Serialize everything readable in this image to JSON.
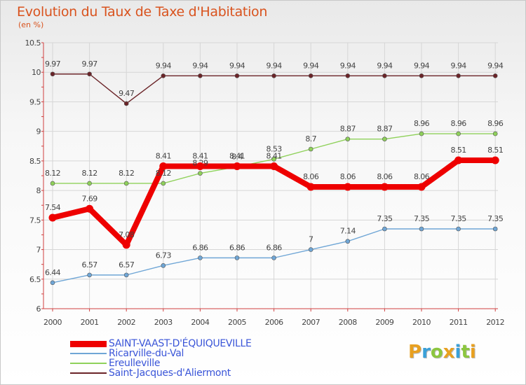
{
  "colors": {
    "title": "#d9531e",
    "background_top": "#e9e9e9",
    "grid": "#d4d4d4",
    "axis": "#d04040"
  },
  "chart_data": {
    "type": "line",
    "title": "Evolution du Taux de Taxe d'Habitation",
    "subtitle": "(en %)",
    "xlabel": "",
    "ylabel": "",
    "ylim": [
      6,
      10.5
    ],
    "y_ticks": [
      "6",
      "6.5",
      "7",
      "7.5",
      "8",
      "8.5",
      "9",
      "9.5",
      "10",
      "10.5"
    ],
    "x": [
      "2000",
      "2001",
      "2002",
      "2003",
      "2004",
      "2005",
      "2006",
      "2007",
      "2008",
      "2009",
      "2010",
      "2011",
      "2012"
    ],
    "legend_position": "bottom-left",
    "grid": true,
    "series": [
      {
        "name": "Saint-Jacques-d'Aliermont",
        "color": "#6b2428",
        "values": [
          9.97,
          9.97,
          9.47,
          9.94,
          9.94,
          9.94,
          9.94,
          9.94,
          9.94,
          9.94,
          9.94,
          9.94,
          9.94
        ],
        "labels": [
          "9.97",
          "9.97",
          "9.47",
          "9.94",
          "9.94",
          "9.94",
          "9.94",
          "9.94",
          "9.94",
          "9.94",
          "9.94",
          "9.94",
          "9.94"
        ]
      },
      {
        "name": "Ereulleville",
        "color": "#8fd15a",
        "values": [
          8.12,
          8.12,
          8.12,
          8.12,
          8.29,
          8.4,
          8.53,
          8.7,
          8.87,
          8.87,
          8.96,
          8.96,
          8.96
        ],
        "labels": [
          "8.12",
          "8.12",
          "8.12",
          "8.12",
          "8.29",
          "8.4",
          "8.53",
          "8.7",
          "8.87",
          "8.87",
          "8.96",
          "8.96",
          "8.96"
        ]
      },
      {
        "name": "Ricarville-du-Val",
        "color": "#6fa6d6",
        "values": [
          6.44,
          6.57,
          6.57,
          6.73,
          6.86,
          6.86,
          6.86,
          7,
          7.14,
          7.35,
          7.35,
          7.35,
          7.35
        ],
        "labels": [
          "6.44",
          "6.57",
          "6.57",
          "6.73",
          "6.86",
          "6.86",
          "6.86",
          "7",
          "7.14",
          "7.35",
          "7.35",
          "7.35",
          "7.35"
        ]
      },
      {
        "name": "SAINT-VAAST-D'ÉQUIQUEVILLE",
        "color": "#ee0000",
        "values": [
          7.54,
          7.69,
          7.08,
          8.41,
          8.41,
          8.41,
          8.41,
          8.06,
          8.06,
          8.06,
          8.06,
          8.51,
          8.51
        ],
        "labels": [
          "7.54",
          "7.69",
          "7.08",
          "8.41",
          "8.41",
          "8.41",
          "8.41",
          "8.06",
          "8.06",
          "8.06",
          "8.06",
          "8.51",
          "8.51"
        ]
      }
    ],
    "legend": [
      {
        "name": "SAINT-VAAST-D'ÉQUIQUEVILLE",
        "color": "#ee0000",
        "stroke": "thick"
      },
      {
        "name": "Ricarville-du-Val",
        "color": "#6fa6d6",
        "stroke": "thin"
      },
      {
        "name": "Ereulleville",
        "color": "#8fd15a",
        "stroke": "thin"
      },
      {
        "name": "Saint-Jacques-d'Aliermont",
        "color": "#6b2428",
        "stroke": "thin"
      }
    ]
  },
  "logo": {
    "letters": [
      "P",
      "r",
      "o",
      "x",
      "i",
      "t",
      "i"
    ],
    "colors": [
      "#e8a020",
      "#3aa0d8",
      "#8cc63f",
      "#e8a020",
      "#3aa0d8",
      "#8cc63f",
      "#e8a020"
    ]
  }
}
